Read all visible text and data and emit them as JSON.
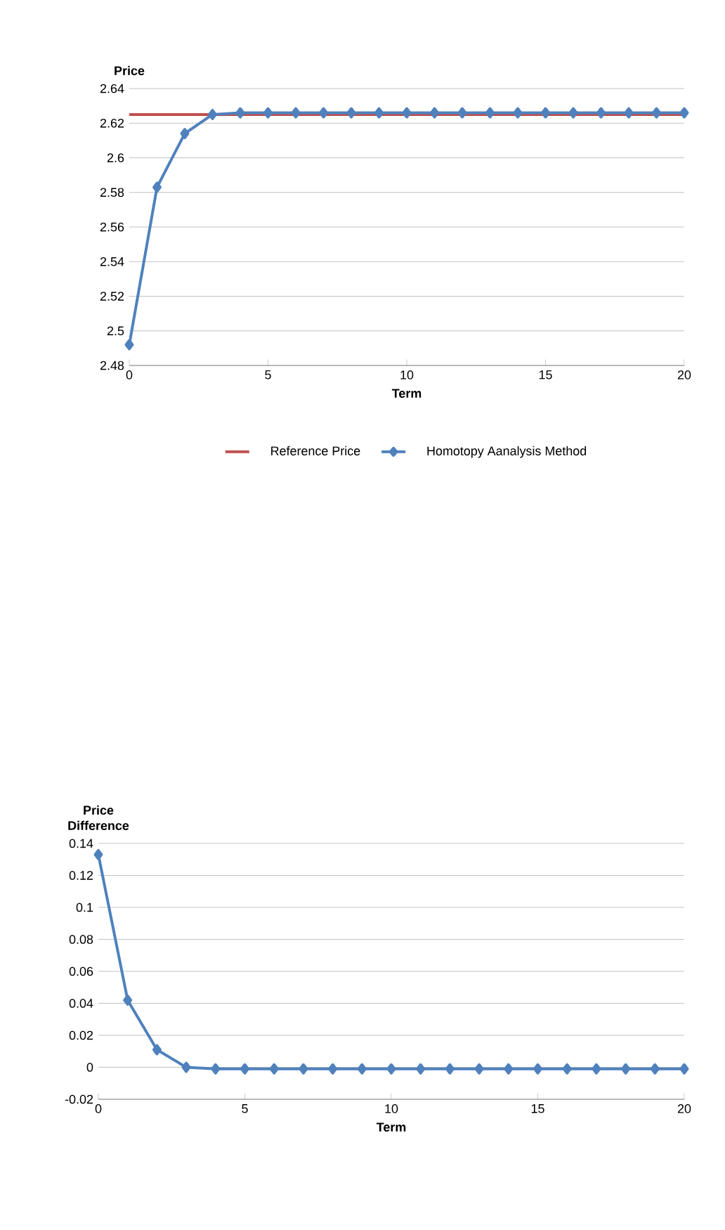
{
  "chart_data": [
    {
      "type": "line",
      "xlabel": "Term",
      "ylabel": "Price",
      "xlim": [
        0,
        20
      ],
      "xticks": [
        0,
        5,
        10,
        15,
        20
      ],
      "ylim": [
        2.48,
        2.64
      ],
      "yticks": [
        2.48,
        2.5,
        2.52,
        2.54,
        2.56,
        2.58,
        2.6,
        2.62,
        2.64
      ],
      "grid": "y",
      "legend": "bottom",
      "series": [
        {
          "name": "Reference Price",
          "color": "#c0504d",
          "marker": "none",
          "x": [
            0,
            20
          ],
          "values": [
            2.625,
            2.625
          ]
        },
        {
          "name": "Homotopy Aanalysis Method",
          "color": "#4f81bd",
          "marker": "diamond",
          "x": [
            0,
            1,
            2,
            3,
            4,
            5,
            6,
            7,
            8,
            9,
            10,
            11,
            12,
            13,
            14,
            15,
            16,
            17,
            18,
            19,
            20
          ],
          "values": [
            2.492,
            2.583,
            2.614,
            2.625,
            2.626,
            2.626,
            2.626,
            2.626,
            2.626,
            2.626,
            2.626,
            2.626,
            2.626,
            2.626,
            2.626,
            2.626,
            2.626,
            2.626,
            2.626,
            2.626,
            2.626
          ]
        }
      ]
    },
    {
      "type": "line",
      "xlabel": "Term",
      "ylabel": "Price Difference",
      "xlim": [
        0,
        20
      ],
      "xticks": [
        0,
        5,
        10,
        15,
        20
      ],
      "ylim": [
        -0.02,
        0.14
      ],
      "yticks": [
        -0.02,
        0,
        0.02,
        0.04,
        0.06,
        0.08,
        0.1,
        0.12,
        0.14
      ],
      "grid": "y",
      "legend": false,
      "series": [
        {
          "color": "#4f81bd",
          "marker": "diamond",
          "x": [
            0,
            1,
            2,
            3,
            4,
            5,
            6,
            7,
            8,
            9,
            10,
            11,
            12,
            13,
            14,
            15,
            16,
            17,
            18,
            19,
            20
          ],
          "values": [
            0.133,
            0.042,
            0.011,
            0.0,
            -0.001,
            -0.001,
            -0.001,
            -0.001,
            -0.001,
            -0.001,
            -0.001,
            -0.001,
            -0.001,
            -0.001,
            -0.001,
            -0.001,
            -0.001,
            -0.001,
            -0.001,
            -0.001,
            -0.001
          ]
        }
      ]
    }
  ]
}
